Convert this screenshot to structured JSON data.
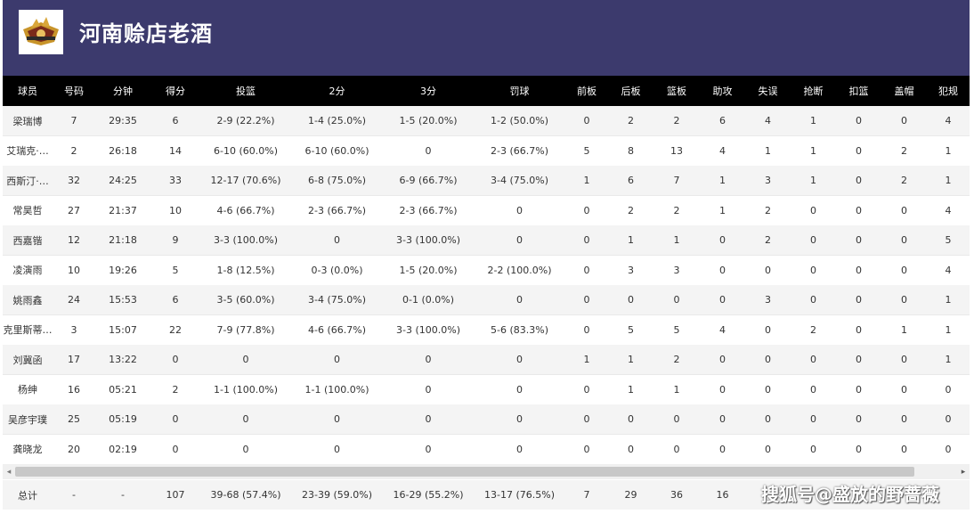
{
  "team": {
    "name": "河南赊店老酒"
  },
  "columns": [
    "球员",
    "号码",
    "分钟",
    "得分",
    "投篮",
    "2分",
    "3分",
    "罚球",
    "前板",
    "后板",
    "篮板",
    "助攻",
    "失误",
    "抢断",
    "扣篮",
    "盖帽",
    "犯规"
  ],
  "rows": [
    [
      "梁瑞博",
      "7",
      "29:35",
      "6",
      "2-9 (22.2%)",
      "1-4 (25.0%)",
      "1-5 (20.0%)",
      "1-2 (50.0%)",
      "0",
      "2",
      "2",
      "6",
      "4",
      "1",
      "0",
      "0",
      "4"
    ],
    [
      "艾瑞克·…",
      "2",
      "26:18",
      "14",
      "6-10 (60.0%)",
      "6-10 (60.0%)",
      "0",
      "2-3 (66.7%)",
      "5",
      "8",
      "13",
      "4",
      "1",
      "1",
      "0",
      "2",
      "1"
    ],
    [
      "西斯汀·…",
      "32",
      "24:25",
      "33",
      "12-17 (70.6%)",
      "6-8 (75.0%)",
      "6-9 (66.7%)",
      "3-4 (75.0%)",
      "1",
      "6",
      "7",
      "1",
      "3",
      "1",
      "0",
      "2",
      "1"
    ],
    [
      "常昊哲",
      "27",
      "21:37",
      "10",
      "4-6 (66.7%)",
      "2-3 (66.7%)",
      "2-3 (66.7%)",
      "0",
      "0",
      "2",
      "2",
      "1",
      "2",
      "0",
      "0",
      "0",
      "4"
    ],
    [
      "西嘉锴",
      "12",
      "21:18",
      "9",
      "3-3 (100.0%)",
      "0",
      "3-3 (100.0%)",
      "0",
      "0",
      "1",
      "1",
      "0",
      "2",
      "0",
      "0",
      "0",
      "5"
    ],
    [
      "凌演雨",
      "10",
      "19:26",
      "5",
      "1-8 (12.5%)",
      "0-3 (0.0%)",
      "1-5 (20.0%)",
      "2-2 (100.0%)",
      "0",
      "3",
      "3",
      "0",
      "0",
      "0",
      "0",
      "0",
      "4"
    ],
    [
      "姚雨鑫",
      "24",
      "15:53",
      "6",
      "3-5 (60.0%)",
      "3-4 (75.0%)",
      "0-1 (0.0%)",
      "0",
      "0",
      "0",
      "0",
      "0",
      "3",
      "0",
      "0",
      "0",
      "1"
    ],
    [
      "克里斯蒂…",
      "3",
      "15:07",
      "22",
      "7-9 (77.8%)",
      "4-6 (66.7%)",
      "3-3 (100.0%)",
      "5-6 (83.3%)",
      "0",
      "5",
      "5",
      "4",
      "0",
      "2",
      "0",
      "1",
      "1"
    ],
    [
      "刘冀函",
      "17",
      "13:22",
      "0",
      "0",
      "0",
      "0",
      "0",
      "1",
      "1",
      "2",
      "0",
      "0",
      "0",
      "0",
      "0",
      "1"
    ],
    [
      "杨绅",
      "16",
      "05:21",
      "2",
      "1-1 (100.0%)",
      "1-1 (100.0%)",
      "0",
      "0",
      "0",
      "1",
      "1",
      "0",
      "0",
      "0",
      "0",
      "0",
      "0"
    ],
    [
      "吴彦宇璞",
      "25",
      "05:19",
      "0",
      "0",
      "0",
      "0",
      "0",
      "0",
      "0",
      "0",
      "0",
      "0",
      "0",
      "0",
      "0",
      "0"
    ],
    [
      "龚晓龙",
      "20",
      "02:19",
      "0",
      "0",
      "0",
      "0",
      "0",
      "0",
      "0",
      "0",
      "0",
      "0",
      "0",
      "0",
      "0",
      "0"
    ]
  ],
  "totals": [
    "总计",
    "-",
    "-",
    "107",
    "39-68 (57.4%)",
    "23-39 (59.0%)",
    "16-29 (55.2%)",
    "13-17 (76.5%)",
    "7",
    "29",
    "36",
    "16",
    "",
    "",
    "",
    "",
    ""
  ],
  "scroll": {
    "left_arrow": "◂",
    "right_arrow": "▸"
  },
  "watermark": "搜狐号@盛放的野蔷薇",
  "colors": {
    "header_bg": "#3c3a6d",
    "table_header_bg": "#000000",
    "row_alt_bg": "#f4f4f4"
  },
  "icons": {
    "logo": "team-logo-icon"
  }
}
